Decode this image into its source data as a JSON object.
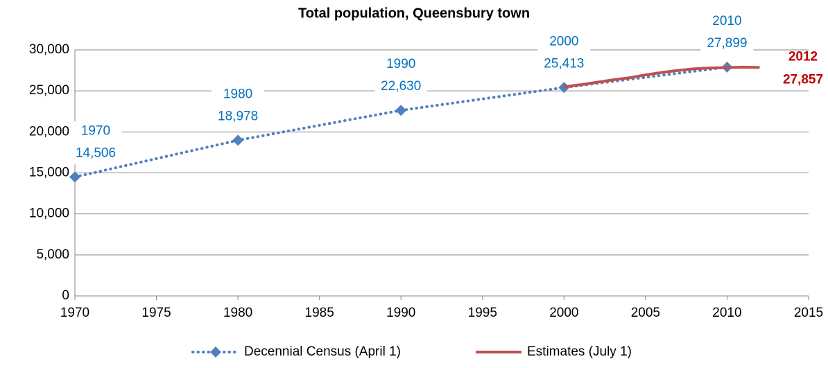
{
  "chart_data": {
    "type": "line",
    "title": "Total population, Queensbury town",
    "xlim": [
      1970,
      2015
    ],
    "xticks": [
      1970,
      1975,
      1980,
      1985,
      1990,
      1995,
      2000,
      2005,
      2010,
      2015
    ],
    "ylim": [
      0,
      30000
    ],
    "yticks": [
      0,
      {
        "value": 5000,
        "label": "5,000"
      },
      {
        "value": 10000,
        "label": "10,000"
      },
      {
        "value": 15000,
        "label": "15,000"
      },
      {
        "value": 20000,
        "label": "20,000"
      },
      {
        "value": 25000,
        "label": "25,000"
      },
      {
        "value": 30000,
        "label": "30,000"
      }
    ],
    "grid": true,
    "legend": "bottom",
    "series": [
      {
        "name": "Decennial Census (April 1)",
        "color": "#4f81bd",
        "style": "dotted",
        "marker": "diamond",
        "x": [
          1970,
          1980,
          1990,
          2000,
          2010
        ],
        "values": [
          14506,
          18978,
          22630,
          25413,
          27899
        ],
        "value_labels": [
          "14,506",
          "18,978",
          "22,630",
          "25,413",
          "27,899"
        ]
      },
      {
        "name": "Estimates (July 1)",
        "color": "#c0504d",
        "style": "solid",
        "x": [
          2000,
          2001,
          2002,
          2003,
          2004,
          2005,
          2006,
          2007,
          2008,
          2009,
          2010,
          2011,
          2012
        ],
        "values": [
          25500,
          25750,
          26050,
          26350,
          26600,
          26950,
          27250,
          27500,
          27700,
          27800,
          27850,
          27900,
          27857
        ],
        "value_labels": [
          null,
          null,
          null,
          null,
          null,
          null,
          null,
          null,
          null,
          null,
          null,
          null,
          "27,857"
        ]
      }
    ]
  }
}
